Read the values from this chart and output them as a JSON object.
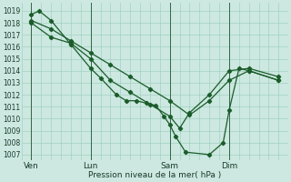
{
  "background_color": "#cce8e0",
  "grid_color": "#99ccbb",
  "line_color": "#1a5c2a",
  "ylim": [
    1006.5,
    1019.7
  ],
  "yticks": [
    1007,
    1008,
    1009,
    1010,
    1011,
    1012,
    1013,
    1014,
    1015,
    1016,
    1017,
    1018,
    1019
  ],
  "xlabel": "Pression niveau de la mer( hPa )",
  "xtick_labels": [
    "Ven",
    "Lun",
    "Sam",
    "Dim"
  ],
  "xtick_positions": [
    0.5,
    3.5,
    7.5,
    10.5
  ],
  "vline_positions": [
    0.5,
    3.5,
    7.5,
    10.5
  ],
  "xlim": [
    0,
    13.5
  ],
  "series1_x": [
    0.5,
    0.9,
    1.5,
    2.5,
    3.5,
    4.0,
    4.8,
    5.3,
    5.8,
    6.3,
    6.8,
    7.2,
    7.5,
    7.8,
    8.3,
    9.5,
    10.2,
    10.5,
    11.0,
    11.5,
    13.0
  ],
  "series1_y": [
    1018.7,
    1019.0,
    1018.2,
    1016.2,
    1014.2,
    1013.4,
    1012.0,
    1011.5,
    1011.5,
    1011.3,
    1011.1,
    1010.2,
    1009.5,
    1008.5,
    1007.2,
    1007.0,
    1008.0,
    1010.7,
    1014.2,
    1014.0,
    1013.2
  ],
  "series2_x": [
    0.5,
    1.5,
    2.5,
    3.5,
    4.5,
    5.5,
    6.5,
    7.5,
    8.5,
    9.5,
    10.5,
    11.5,
    13.0
  ],
  "series2_y": [
    1018.2,
    1017.5,
    1016.5,
    1015.5,
    1014.5,
    1013.5,
    1012.5,
    1011.5,
    1010.3,
    1011.5,
    1013.2,
    1014.0,
    1013.2
  ],
  "series3_x": [
    0.5,
    1.5,
    2.5,
    3.5,
    4.5,
    5.5,
    6.5,
    7.5,
    8.0,
    8.5,
    9.5,
    10.5,
    11.5,
    13.0
  ],
  "series3_y": [
    1018.0,
    1016.8,
    1016.3,
    1015.0,
    1013.2,
    1012.2,
    1011.2,
    1010.2,
    1009.2,
    1010.5,
    1012.0,
    1014.0,
    1014.2,
    1013.5
  ],
  "ytick_fontsize": 5.5,
  "xtick_fontsize": 6.5,
  "xlabel_fontsize": 6.5
}
